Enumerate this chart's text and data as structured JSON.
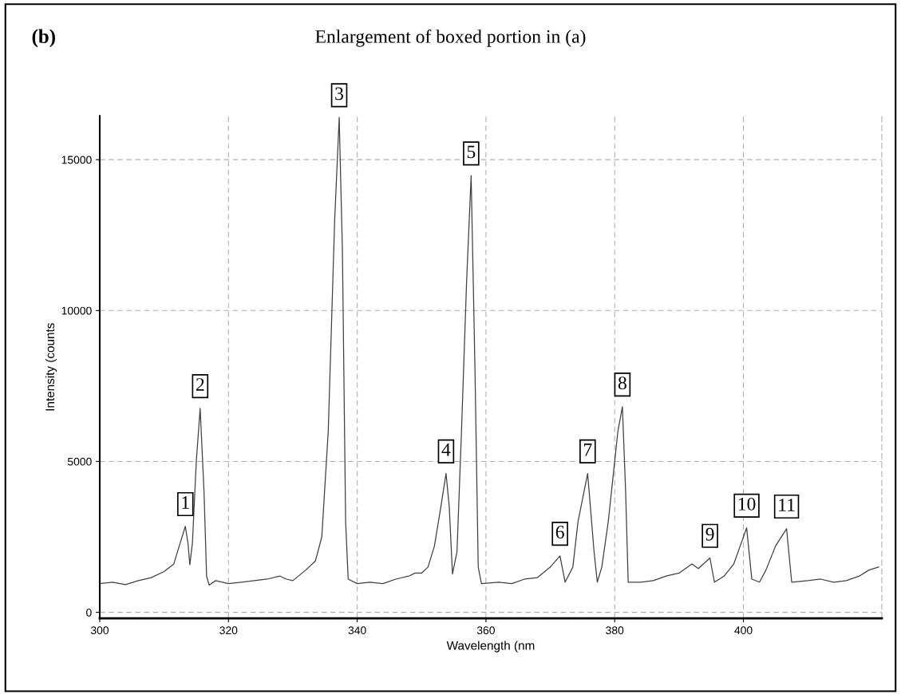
{
  "chart_data": {
    "type": "line",
    "title": "Enlargement of boxed portion in (a)",
    "xlabel": "Wavelength (nm",
    "ylabel": "Intensity (counts",
    "annotations": [
      "(b)",
      {
        "text": "1",
        "x": 313.3,
        "y": 2850
      },
      {
        "text": "2",
        "x": 315.6,
        "y": 6760
      },
      {
        "text": "3",
        "x": 337.2,
        "y": 16400
      },
      {
        "text": "4",
        "x": 353.8,
        "y": 4600
      },
      {
        "text": "5",
        "x": 357.7,
        "y": 14470
      },
      {
        "text": "6",
        "x": 371.5,
        "y": 1870
      },
      {
        "text": "7",
        "x": 375.8,
        "y": 4600
      },
      {
        "text": "8",
        "x": 381.2,
        "y": 6810
      },
      {
        "text": "9",
        "x": 394.8,
        "y": 1800
      },
      {
        "text": "10",
        "x": 400.5,
        "y": 2800
      },
      {
        "text": "11",
        "x": 406.7,
        "y": 2770
      }
    ],
    "x": [
      300,
      302,
      304,
      306,
      308,
      310,
      311.5,
      312.5,
      313.3,
      313.7,
      314.0,
      314.4,
      315.0,
      315.6,
      316.2,
      316.6,
      317,
      318,
      320,
      322,
      324,
      326,
      328,
      329,
      330,
      332,
      333.5,
      334.5,
      335.5,
      336.5,
      337.2,
      337.7,
      338.2,
      338.6,
      340,
      342,
      344,
      346,
      348,
      349,
      350,
      351,
      352,
      353,
      353.8,
      354.3,
      354.8,
      355.5,
      356.2,
      357,
      357.7,
      358.3,
      358.8,
      359.3,
      362,
      364,
      366,
      368,
      370,
      371.5,
      372.3,
      373.5,
      374.3,
      375.8,
      376.8,
      377.3,
      378,
      379,
      380.5,
      381.2,
      381.7,
      382.1,
      384,
      386,
      388,
      390,
      392,
      393,
      394.8,
      395.5,
      397,
      398.5,
      399.5,
      400.5,
      401.3,
      402.5,
      403.5,
      405,
      406.7,
      407.5,
      410,
      412,
      414,
      416,
      418,
      419.5,
      421
    ],
    "series": [
      {
        "color": "#404040",
        "values": [
          950,
          1000,
          920,
          1050,
          1150,
          1350,
          1600,
          2300,
          2850,
          2300,
          1580,
          2300,
          5000,
          6760,
          4000,
          1200,
          900,
          1050,
          950,
          1000,
          1050,
          1100,
          1200,
          1100,
          1050,
          1400,
          1700,
          2500,
          6000,
          13000,
          16400,
          12000,
          3000,
          1100,
          950,
          1000,
          950,
          1100,
          1200,
          1300,
          1300,
          1500,
          2200,
          3500,
          4600,
          3500,
          1270,
          2000,
          6000,
          11000,
          14470,
          8000,
          1500,
          950,
          1000,
          950,
          1100,
          1150,
          1500,
          1870,
          1000,
          1500,
          3000,
          4600,
          2000,
          1000,
          1500,
          3000,
          6000,
          6810,
          4000,
          1000,
          1000,
          1050,
          1200,
          1300,
          1600,
          1450,
          1800,
          1000,
          1200,
          1600,
          2200,
          2800,
          1100,
          1000,
          1400,
          2200,
          2770,
          1000,
          1050,
          1100,
          1000,
          1050,
          1200,
          1400,
          1500
        ]
      }
    ],
    "xlim": [
      300,
      421.5
    ],
    "ylim": [
      -200,
      16450
    ],
    "xticks": [
      300,
      320,
      340,
      360,
      380,
      400
    ],
    "yticks": [
      0,
      5000,
      10000,
      15000
    ],
    "grid": true,
    "marker": "none",
    "line_style": "solid"
  }
}
